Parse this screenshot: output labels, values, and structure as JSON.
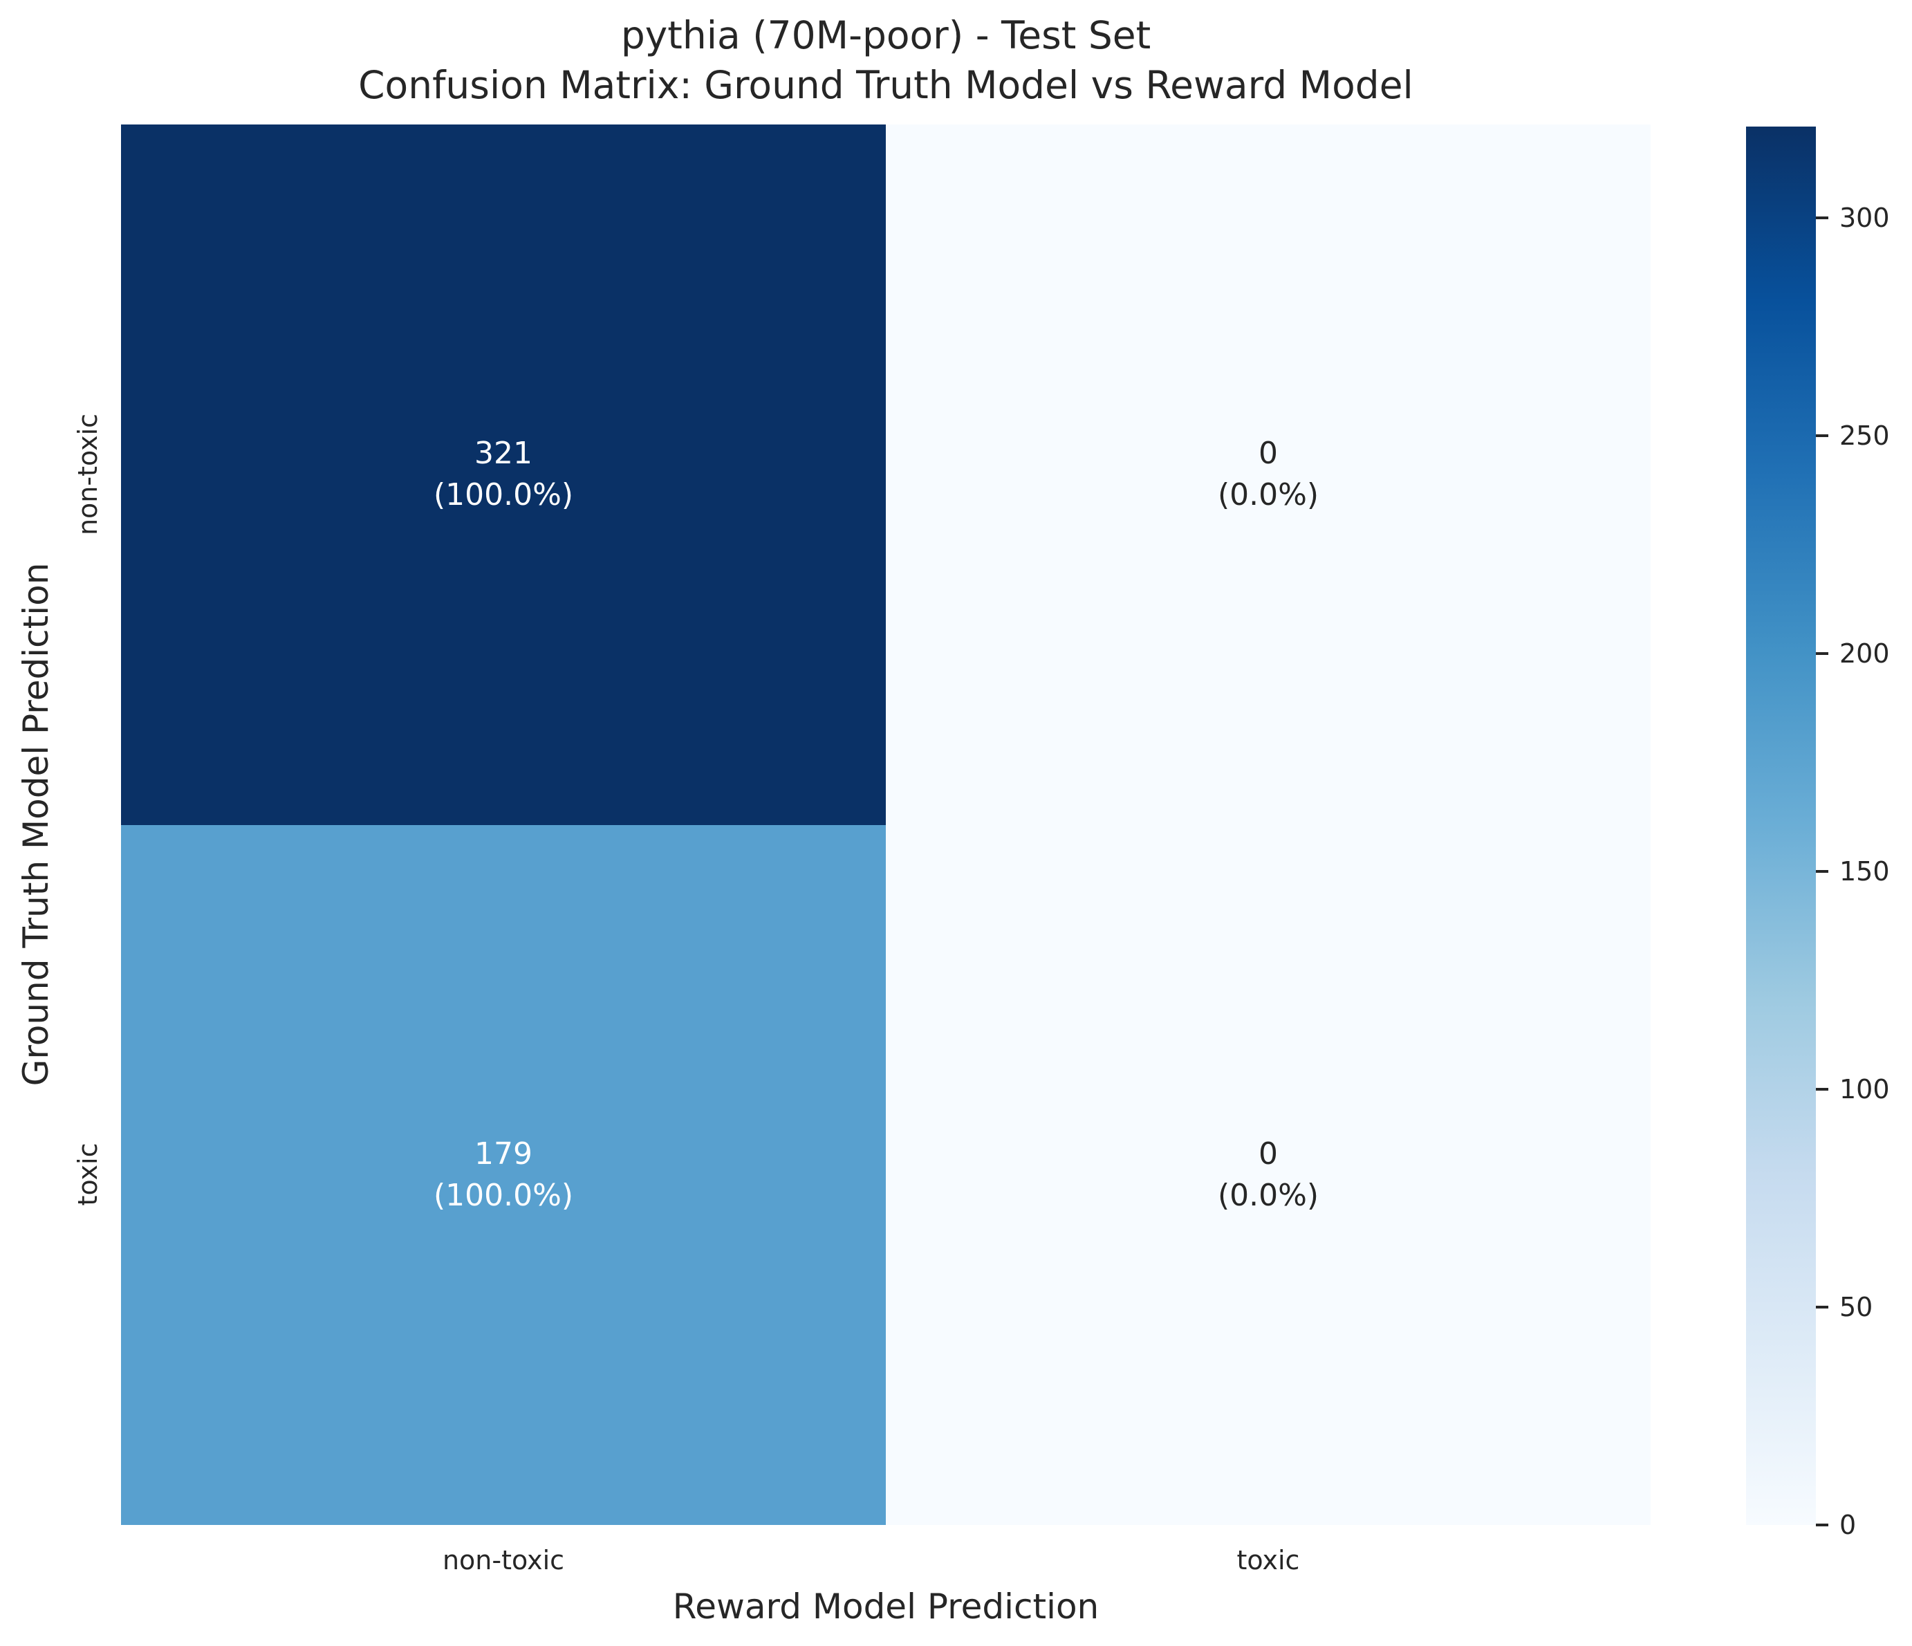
{
  "figure": {
    "background": "#ffffff",
    "text_color": "#262626"
  },
  "title": {
    "line1": "pythia (70M-poor) - Test Set",
    "line2": "Confusion Matrix: Ground Truth Model vs Reward Model"
  },
  "x_axis": {
    "label": "Reward Model Prediction",
    "ticks": [
      "non-toxic",
      "toxic"
    ]
  },
  "y_axis": {
    "label": "Ground Truth Model Prediction",
    "ticks": [
      "non-toxic",
      "toxic"
    ]
  },
  "cells": {
    "r0c0": {
      "count": "321",
      "percent": "(100.0%)",
      "bg": "#0a3166",
      "fg": "#ffffff"
    },
    "r0c1": {
      "count": "0",
      "percent": "(0.0%)",
      "bg": "#f7fbff",
      "fg": "#262626"
    },
    "r1c0": {
      "count": "179",
      "percent": "(100.0%)",
      "bg": "#58a0cf",
      "fg": "#ffffff"
    },
    "r1c1": {
      "count": "0",
      "percent": "(0.0%)",
      "bg": "#f7fbff",
      "fg": "#262626"
    }
  },
  "colorbar": {
    "vmin": 0,
    "vmax": 321,
    "ticks": [
      0,
      50,
      100,
      150,
      200,
      250,
      300
    ],
    "gradient_stops": [
      "#f7fbff 0%",
      "#deebf7 12.5%",
      "#c6dbef 25%",
      "#9ecae1 37.5%",
      "#6baed6 50%",
      "#4292c6 62.5%",
      "#2171b5 75%",
      "#08519c 87.5%",
      "#0a3166 100%"
    ]
  },
  "chart_data": {
    "type": "heatmap",
    "title": "pythia (70M-poor) - Test Set\nConfusion Matrix: Ground Truth Model vs Reward Model",
    "xlabel": "Reward Model Prediction",
    "ylabel": "Ground Truth Model Prediction",
    "x_categories": [
      "non-toxic",
      "toxic"
    ],
    "y_categories": [
      "non-toxic",
      "toxic"
    ],
    "values": [
      [
        321,
        0
      ],
      [
        179,
        0
      ]
    ],
    "row_percentages": [
      [
        100.0,
        0.0
      ],
      [
        100.0,
        0.0
      ]
    ],
    "cell_labels": [
      [
        "321\n(100.0%)",
        "0\n(0.0%)"
      ],
      [
        "179\n(100.0%)",
        "0\n(0.0%)"
      ]
    ],
    "colormap": "Blues",
    "vmin": 0,
    "vmax": 321,
    "colorbar_ticks": [
      0,
      50,
      100,
      150,
      200,
      250,
      300
    ],
    "legend_position": "right-colorbar",
    "grid": false
  }
}
